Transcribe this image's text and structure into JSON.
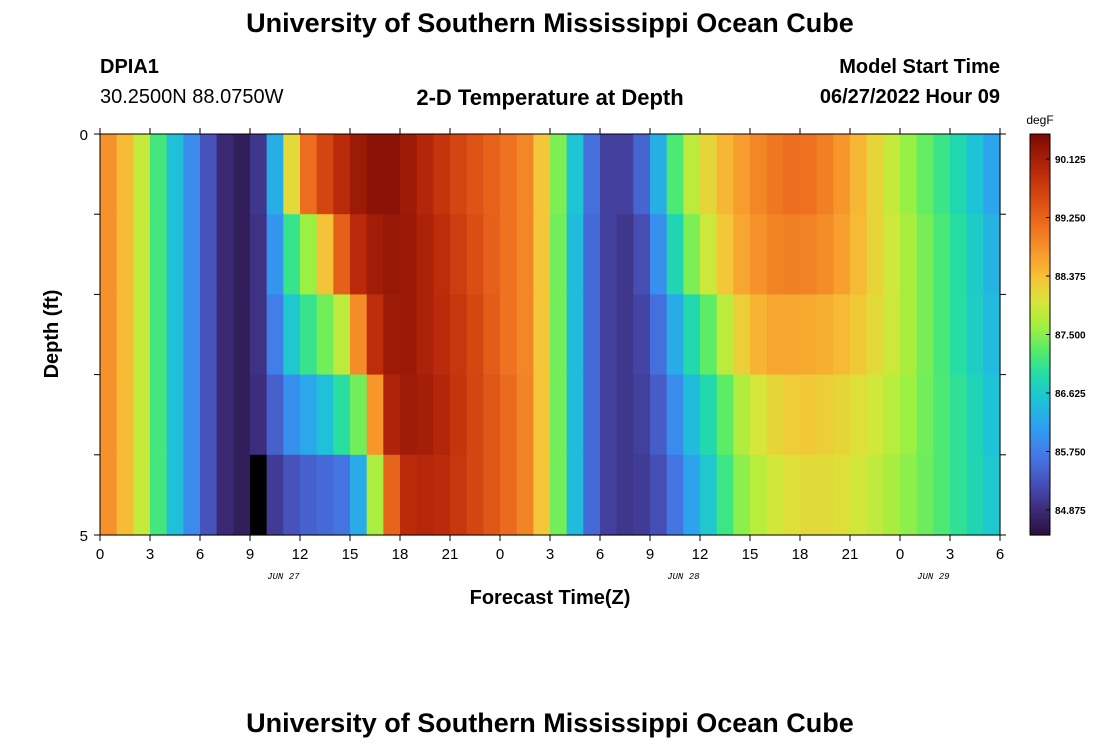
{
  "header": {
    "title": "University of Southern Mississippi Ocean Cube",
    "station": "DPIA1",
    "coords": "30.2500N  88.0750W",
    "plot_title": "2-D Temperature at Depth",
    "start_label": "Model Start Time",
    "start_value": "06/27/2022 Hour 09"
  },
  "footer": {
    "title": "University of Southern Mississippi Ocean Cube"
  },
  "chart_data": {
    "type": "heatmap",
    "title": "2-D Temperature at Depth",
    "xlabel": "Forecast Time(Z)",
    "ylabel": "Depth (ft)",
    "units": "degF",
    "x_tick_labels": [
      "0",
      "3",
      "6",
      "9",
      "12",
      "15",
      "18",
      "21",
      "0",
      "3",
      "6",
      "9",
      "12",
      "15",
      "18",
      "21",
      "0",
      "3",
      "6"
    ],
    "date_labels": [
      {
        "label": "JUN 27",
        "hour_index": 11
      },
      {
        "label": "JUN 28",
        "hour_index": 35
      },
      {
        "label": "JUN 29",
        "hour_index": 50
      }
    ],
    "y_tick_labels": [
      "0",
      "5"
    ],
    "ylim": [
      0,
      5
    ],
    "xlim_hours": [
      0,
      54
    ],
    "colorbar": {
      "min": 84.5,
      "max": 90.5,
      "tick_labels": [
        "90.125",
        "89.250",
        "88.375",
        "87.500",
        "86.625",
        "85.750",
        "84.875"
      ],
      "tick_values": [
        90.125,
        89.25,
        88.375,
        87.5,
        86.625,
        85.75,
        84.875
      ]
    },
    "depth_rows": [
      0.5,
      1.5,
      2.5,
      3.5,
      4.5
    ],
    "key_hours": [
      0,
      2,
      4,
      6,
      7,
      8,
      9,
      10,
      11,
      12,
      13,
      14,
      15,
      16,
      17,
      18,
      20,
      22,
      24,
      26,
      27,
      28,
      29,
      30,
      31,
      32,
      33,
      34,
      35,
      36,
      37,
      38,
      40,
      42,
      44,
      46,
      48,
      50,
      52,
      54
    ],
    "key_values": [
      [
        89.0,
        88.2,
        86.8,
        85.6,
        85.0,
        84.7,
        84.7,
        85.3,
        87.3,
        88.9,
        89.4,
        89.8,
        90.1,
        90.3,
        90.4,
        90.3,
        89.9,
        89.5,
        89.2,
        88.8,
        87.8,
        87.1,
        86.0,
        85.2,
        85.0,
        85.2,
        85.8,
        86.8,
        87.6,
        88.0,
        88.3,
        88.6,
        89.0,
        89.2,
        88.9,
        88.3,
        87.7,
        87.2,
        86.7,
        86.0
      ],
      [
        89.0,
        88.2,
        86.8,
        85.6,
        85.0,
        84.7,
        84.7,
        85.2,
        86.8,
        87.3,
        87.9,
        88.8,
        89.8,
        90.1,
        90.2,
        90.3,
        90.0,
        89.6,
        89.2,
        88.8,
        87.8,
        87.0,
        85.9,
        85.2,
        85.0,
        85.0,
        85.5,
        86.4,
        87.2,
        87.7,
        88.1,
        88.5,
        88.9,
        89.0,
        88.8,
        88.3,
        87.8,
        87.3,
        86.8,
        86.2
      ],
      [
        89.0,
        88.2,
        86.8,
        85.6,
        85.0,
        84.7,
        84.7,
        85.2,
        86.3,
        86.9,
        87.2,
        87.6,
        88.0,
        89.7,
        90.1,
        90.3,
        90.0,
        89.7,
        89.2,
        88.8,
        87.8,
        87.0,
        85.9,
        85.2,
        85.0,
        85.0,
        85.3,
        85.9,
        86.6,
        87.1,
        87.5,
        88.1,
        88.6,
        88.6,
        88.5,
        88.2,
        87.8,
        87.3,
        86.8,
        86.3
      ],
      [
        89.0,
        88.2,
        86.8,
        85.6,
        85.0,
        84.7,
        84.7,
        85.1,
        85.8,
        86.1,
        86.3,
        86.7,
        87.2,
        87.6,
        89.9,
        90.2,
        90.1,
        89.7,
        89.3,
        88.8,
        87.8,
        87.0,
        85.9,
        85.2,
        85.0,
        85.0,
        85.2,
        85.6,
        86.2,
        86.7,
        87.0,
        87.6,
        88.1,
        88.3,
        88.2,
        88.0,
        87.7,
        87.3,
        86.9,
        86.4
      ],
      [
        89.0,
        88.2,
        86.8,
        85.6,
        85.0,
        84.7,
        84.7,
        84.9,
        85.2,
        85.4,
        85.5,
        85.6,
        85.7,
        86.8,
        88.6,
        89.9,
        90.0,
        89.7,
        89.3,
        88.8,
        87.8,
        87.0,
        85.9,
        85.2,
        85.0,
        85.0,
        85.1,
        85.4,
        85.9,
        86.4,
        86.8,
        87.4,
        87.9,
        88.1,
        88.1,
        87.9,
        87.6,
        87.3,
        86.9,
        86.5
      ]
    ],
    "missing_cell": {
      "hour": 9,
      "depth_row": 4
    }
  }
}
